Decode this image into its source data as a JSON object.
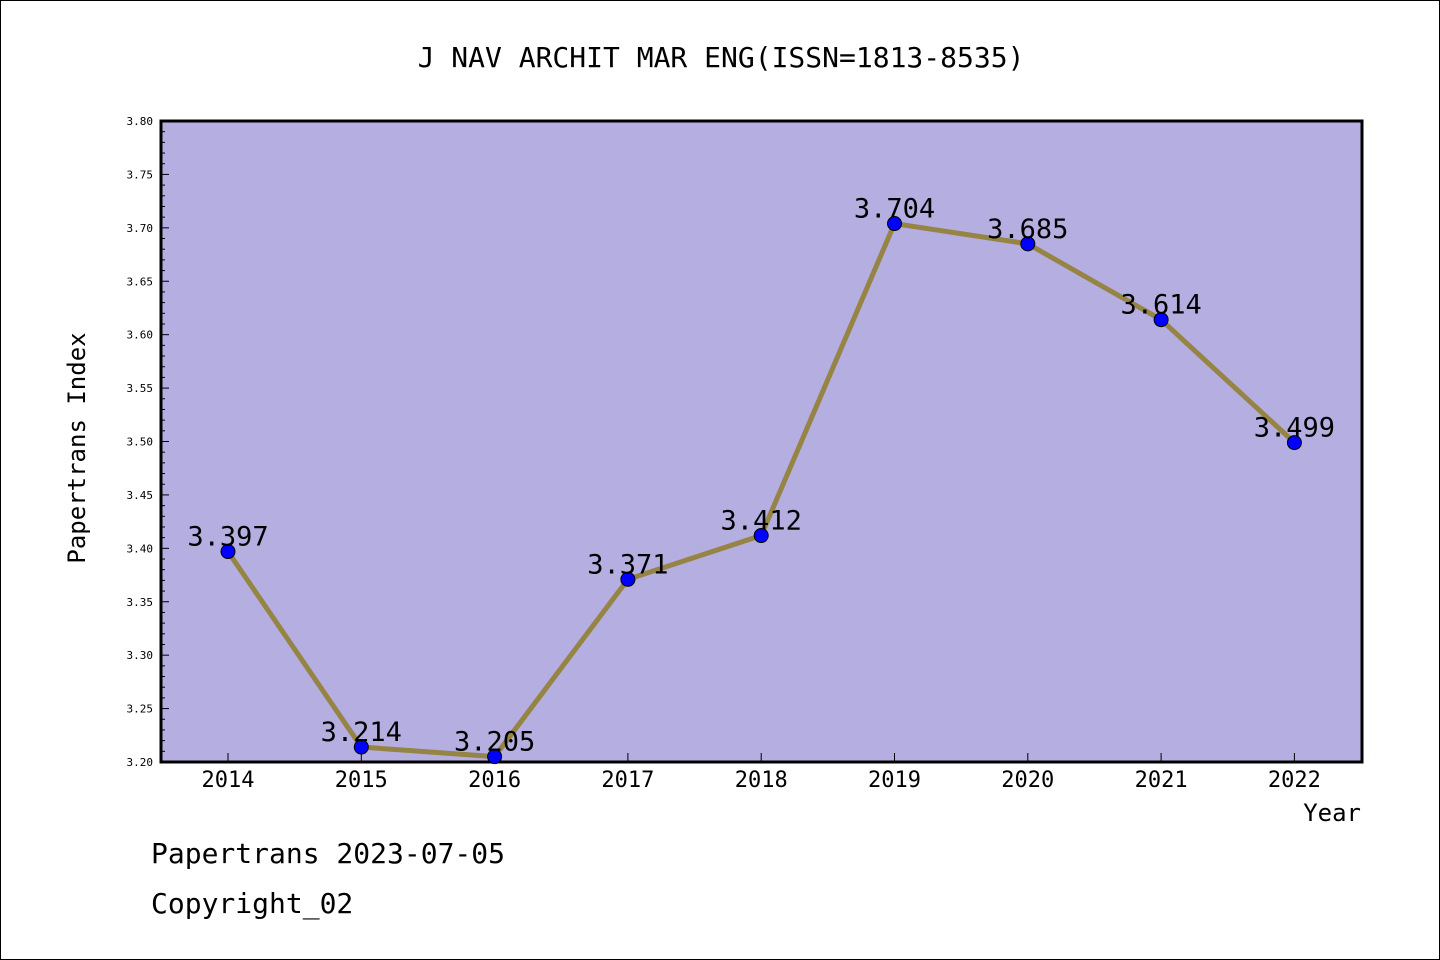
{
  "chart_data": {
    "type": "line",
    "title": "J NAV ARCHIT MAR ENG(ISSN=1813-8535)",
    "xlabel": "Year",
    "ylabel": "Papertrans Index",
    "categories": [
      "2014",
      "2015",
      "2016",
      "2017",
      "2018",
      "2019",
      "2020",
      "2021",
      "2022"
    ],
    "series": [
      {
        "values": [
          3.397,
          3.214,
          3.205,
          3.371,
          3.412,
          3.704,
          3.685,
          3.614,
          3.499
        ],
        "labels": [
          "3.397",
          "3.214",
          "3.205",
          "3.371",
          "3.412",
          "3.704",
          "3.685",
          "3.614",
          "3.499"
        ]
      }
    ],
    "ylim": [
      3.2,
      3.8
    ],
    "yticks": [
      "3.20",
      "3.25",
      "3.30",
      "3.35",
      "3.40",
      "3.45",
      "3.50",
      "3.55",
      "3.60",
      "3.65",
      "3.70",
      "3.75",
      "3.80"
    ],
    "grid": false,
    "legend": "none",
    "colors": {
      "plot_background": "#b4aee1",
      "line": "#958443",
      "marker": "#0000ff"
    }
  },
  "footer": {
    "date_line": "Papertrans 2023-07-05",
    "copyright": "Copyright_02"
  }
}
